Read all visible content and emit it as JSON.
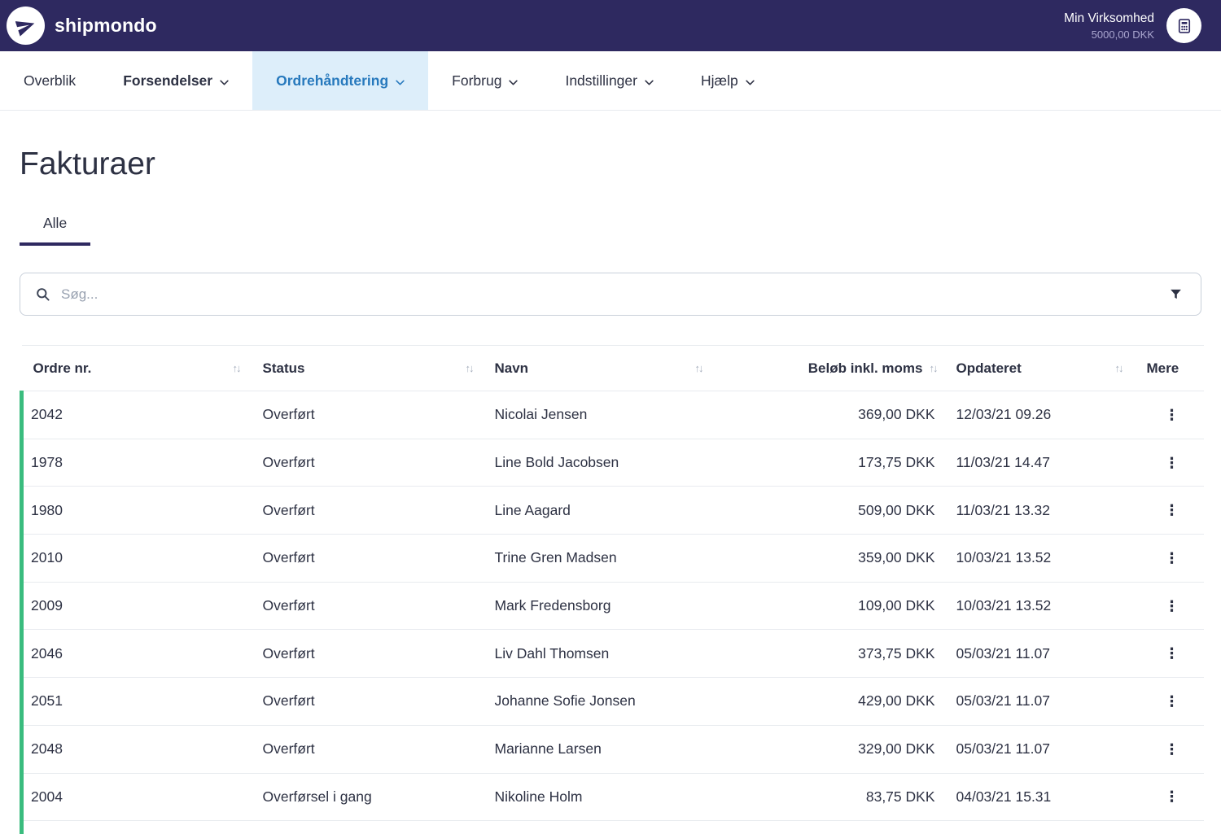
{
  "topbar": {
    "brand": "shipmondo",
    "account_name": "Min Virksomhed",
    "balance": "5000,00 DKK"
  },
  "nav": {
    "items": [
      {
        "id": "overblik",
        "label": "Overblik",
        "dropdown": false,
        "active": false,
        "bold": false
      },
      {
        "id": "forsendelser",
        "label": "Forsendelser",
        "dropdown": true,
        "active": false,
        "bold": true
      },
      {
        "id": "ordrehaandtering",
        "label": "Ordrehåndtering",
        "dropdown": true,
        "active": true,
        "bold": true
      },
      {
        "id": "forbrug",
        "label": "Forbrug",
        "dropdown": true,
        "active": false,
        "bold": false
      },
      {
        "id": "indstillinger",
        "label": "Indstillinger",
        "dropdown": true,
        "active": false,
        "bold": false
      },
      {
        "id": "hjaelp",
        "label": "Hjælp",
        "dropdown": true,
        "active": false,
        "bold": false
      }
    ]
  },
  "page": {
    "title": "Fakturaer"
  },
  "tabs": [
    {
      "label": "Alle",
      "active": true
    }
  ],
  "search": {
    "placeholder": "Søg..."
  },
  "table": {
    "columns": [
      {
        "label": "Ordre nr.",
        "sortable": true,
        "align": "left"
      },
      {
        "label": "Status",
        "sortable": true,
        "align": "left"
      },
      {
        "label": "Navn",
        "sortable": true,
        "align": "left"
      },
      {
        "label": "Beløb inkl. moms",
        "sortable": true,
        "align": "right"
      },
      {
        "label": "Opdateret",
        "sortable": true,
        "align": "left"
      },
      {
        "label": "Mere",
        "sortable": false,
        "align": "left"
      }
    ],
    "rows": [
      {
        "order": "2042",
        "status": "Overført",
        "name": "Nicolai Jensen",
        "amount": "369,00 DKK",
        "updated": "12/03/21 09.26"
      },
      {
        "order": "1978",
        "status": "Overført",
        "name": "Line Bold Jacobsen",
        "amount": "173,75 DKK",
        "updated": "11/03/21 14.47"
      },
      {
        "order": "1980",
        "status": "Overført",
        "name": "Line Aagard",
        "amount": "509,00 DKK",
        "updated": "11/03/21 13.32"
      },
      {
        "order": "2010",
        "status": "Overført",
        "name": "Trine Gren Madsen",
        "amount": "359,00 DKK",
        "updated": "10/03/21 13.52"
      },
      {
        "order": "2009",
        "status": "Overført",
        "name": "Mark Fredensborg",
        "amount": "109,00 DKK",
        "updated": "10/03/21 13.52"
      },
      {
        "order": "2046",
        "status": "Overført",
        "name": "Liv Dahl Thomsen",
        "amount": "373,75 DKK",
        "updated": "05/03/21 11.07"
      },
      {
        "order": "2051",
        "status": "Overført",
        "name": "Johanne Sofie Jonsen",
        "amount": "429,00 DKK",
        "updated": "05/03/21 11.07"
      },
      {
        "order": "2048",
        "status": "Overført",
        "name": "Marianne Larsen",
        "amount": "329,00 DKK",
        "updated": "05/03/21 11.07"
      },
      {
        "order": "2004",
        "status": "Overførsel i gang",
        "name": "Nikoline Holm",
        "amount": "83,75 DKK",
        "updated": "04/03/21 15.31"
      }
    ]
  },
  "icons": {
    "sort": "↑↓",
    "more": "⋮"
  },
  "colors": {
    "topbar_bg": "#2e2960",
    "nav_active_text": "#2779bd",
    "nav_active_bg": "#ddeefa",
    "row_stripe": "#3abc7e",
    "text": "#2d3143",
    "border": "#e8ebef"
  }
}
